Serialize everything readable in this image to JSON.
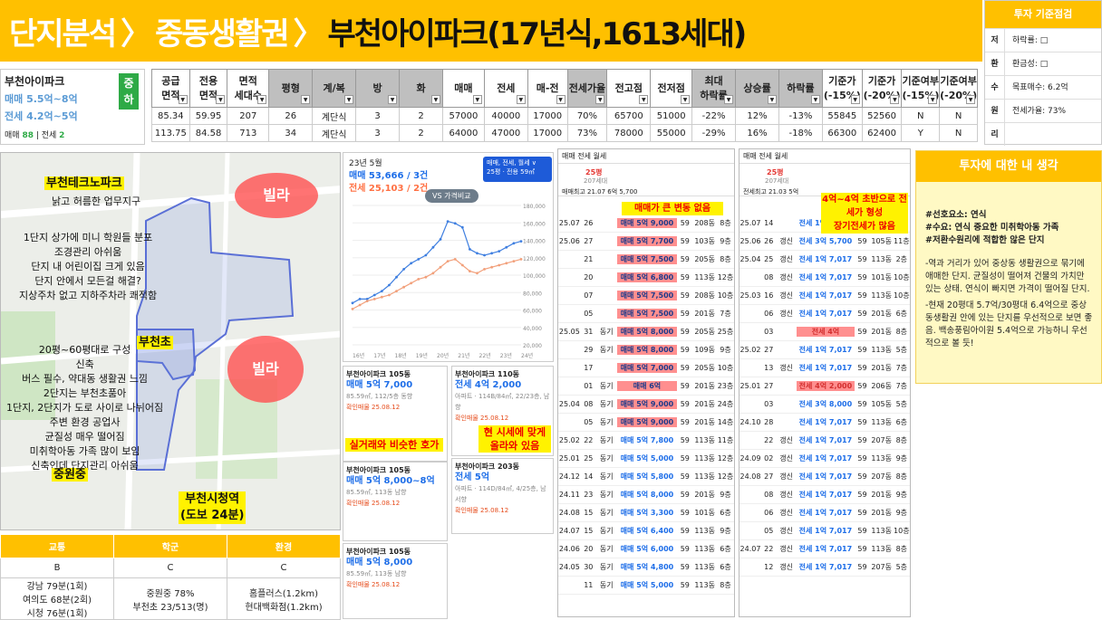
{
  "header": {
    "part1": "단지분석",
    "part2": "중동생활권",
    "part3": "부천아이파크(17년식,1613세대)"
  },
  "criteria": {
    "title": "투자 기준점검",
    "rows": [
      {
        "k": "저",
        "v": "하락률: □"
      },
      {
        "k": "환",
        "v": "환금성: □"
      },
      {
        "k": "수",
        "v": "목표매수: 6.2억"
      },
      {
        "k": "원",
        "v": "전세가율: 73%"
      },
      {
        "k": "리",
        "v": ""
      }
    ]
  },
  "info": {
    "name": "부천아이파크",
    "sale": "매매 5.5억~8억",
    "jeonse": "전세 4.2억~5억",
    "tag": "중\n하",
    "cnt_label_sale": "매매",
    "cnt_sale": "88",
    "cnt_label_jeonse": "전세",
    "cnt_jeonse": "2"
  },
  "table": {
    "headers": [
      "공급\n면적",
      "전용\n면적",
      "면적\n세대수",
      "평형",
      "계/복",
      "방",
      "화",
      "매매",
      "전세",
      "매-전",
      "전세가율",
      "전고점",
      "전저점",
      "최대\n하락률",
      "상승률",
      "하락률",
      "기준가\n(-15%)",
      "기준가\n(-20%)",
      "기준여부\n(-15%)",
      "기준여부\n(-20%)"
    ],
    "rows": [
      [
        "85.34",
        "59.95",
        "207",
        "26",
        "계단식",
        "3",
        "2",
        "57000",
        "40000",
        "17000",
        "70%",
        "65700",
        "51000",
        "-22%",
        "12%",
        "-13%",
        "55845",
        "52560",
        "N",
        "N"
      ],
      [
        "113.75",
        "84.58",
        "713",
        "34",
        "계단식",
        "3",
        "2",
        "64000",
        "47000",
        "17000",
        "73%",
        "78000",
        "55000",
        "-29%",
        "16%",
        "-18%",
        "66300",
        "62400",
        "Y",
        "N"
      ]
    ]
  },
  "map": {
    "labels": {
      "techno": "부천테크노파크",
      "techno_sub": "낡고 허름한 업무지구",
      "desc1": "1단지 상가에 미니 학원들 분포\n조경관리 아쉬움\n단지 내 어린이집 크게 있음\n단지 안에서 모든걸 해결?\n지상주차 없고 지하주차라 쾌적함",
      "school": "부천초",
      "desc2": "20평~60평대로 구성\n신축\n버스 필수, 약대동 생활권 느낌\n2단지는 부천초품아\n1단지, 2단지가 도로 사이로 나뉘어짐\n주변 환경 공업사\n균질성 매우 떨어짐\n미취학아동 가족 많이 보임\n신축인데 단지관리 아쉬움",
      "joongwon": "중원중",
      "station": "부천시청역\n(도보 24분)",
      "villa": "빌라"
    }
  },
  "school_table": {
    "headers": [
      "교통",
      "학군",
      "환경"
    ],
    "grades": [
      "B",
      "C",
      "C"
    ],
    "details": [
      "강남 79분(1회)\n여의도 68분(2회)\n시청 76분(1회)",
      "중원중 78%\n부천초 23/513(명)",
      "홈플러스(1.2km)\n현대백화점(1.2km)"
    ]
  },
  "chart_data": {
    "type": "line",
    "title": "23년 5월",
    "sale_text": "매매 53,666 / 3건",
    "jeonse_text": "전세 25,103 / 2건",
    "filter": "매매, 전세, 월세 ∨",
    "size": "25평 · 전용 59㎡",
    "compare": "VS 가격비교",
    "x_labels": [
      "16년",
      "17년",
      "18년",
      "19년",
      "20년",
      "21년",
      "22년",
      "23년",
      "24년"
    ],
    "y_labels": [
      "180,000",
      "160,000",
      "140,000",
      "120,000",
      "100,000",
      "80,000",
      "60,000",
      "40,000",
      "20,000"
    ],
    "series": [
      {
        "values": [
          2.1,
          2.3,
          2.3,
          2.5,
          2.7,
          3.0,
          3.4,
          3.8,
          4.1,
          4.3,
          4.5,
          4.9,
          5.3,
          6.2,
          6.1,
          5.9,
          4.8,
          4.6,
          4.5,
          4.6,
          4.7,
          4.9,
          5.1,
          5.2
        ]
      },
      {
        "values": [
          1.8,
          2.0,
          2.2,
          2.3,
          2.4,
          2.5,
          2.7,
          2.9,
          3.1,
          3.3,
          3.4,
          3.6,
          3.9,
          4.2,
          4.3,
          4.0,
          3.7,
          3.6,
          3.8,
          3.9,
          4.0,
          4.1,
          4.2,
          4.3
        ]
      }
    ]
  },
  "cards": [
    {
      "title": "부천아이파크 105동",
      "price": "매매 5억 7,000",
      "spec": "85.59㎡, 112/5층 동향",
      "note": "확인매물 25.08.12",
      "hl": "실거래와 비슷한 호가"
    },
    {
      "title": "부천아이파크 105동",
      "price": "매매 5억 8,000~8억",
      "spec": "85.59㎡, 113동 남향",
      "note": "확인매물 25.08.12",
      "hl": ""
    },
    {
      "title": "부천아이파크 105동",
      "price": "매매 5억 8,000",
      "spec": "85.59㎡, 113동 남향",
      "note": "확인매물 25.08.12",
      "hl": ""
    },
    {
      "title": "부천아이파크 110동",
      "price": "전세 4억 2,000",
      "spec": "아파트 · 114B/84㎡, 22/23층, 남향",
      "note": "확인매물 25.08.12",
      "hl": "현 시세에 맞게 올라와 있음"
    },
    {
      "title": "부천아이파크 203동",
      "price": "전세 5억",
      "spec": "아파트 · 114D/84㎡, 4/25층, 남서향",
      "note": "확인매물 25.08.12",
      "hl": ""
    }
  ],
  "trade1": {
    "tabs": "매매 전세 월세",
    "area": "25평",
    "year": "207세대",
    "hl": "매매가 큰 변동 없음",
    "hi": "매매최고 21.07 6억 5,700",
    "jeonse_hi": "전세최고 21.03 5억",
    "rows": [
      [
        "25.07",
        "26",
        "",
        "매매 5억 9,000",
        "59",
        "208동",
        "8층",
        1
      ],
      [
        "25.06",
        "27",
        "",
        "매매 5억 7,700",
        "59",
        "103동",
        "9층",
        1
      ],
      [
        "",
        "21",
        "",
        "매매 5억 7,500",
        "59",
        "205동",
        "8층",
        1
      ],
      [
        "",
        "20",
        "",
        "매매 5억 6,800",
        "59",
        "113동",
        "12층",
        1
      ],
      [
        "",
        "07",
        "",
        "매매 5억 7,500",
        "59",
        "208동",
        "10층",
        1
      ],
      [
        "",
        "05",
        "",
        "매매 5억 7,500",
        "59",
        "201동",
        "7층",
        1
      ],
      [
        "25.05",
        "31",
        "동기",
        "매매 5억 8,000",
        "59",
        "205동",
        "25층",
        1
      ],
      [
        "",
        "29",
        "동기",
        "매매 5억 8,000",
        "59",
        "109동",
        "9층",
        1
      ],
      [
        "",
        "17",
        "",
        "매매 5억 7,000",
        "59",
        "205동",
        "10층",
        1
      ],
      [
        "",
        "01",
        "동기",
        "매매 6억",
        "59",
        "201동",
        "23층",
        1
      ],
      [
        "25.04",
        "08",
        "동기",
        "매매 5억 9,000",
        "59",
        "201동",
        "24층",
        1
      ],
      [
        "",
        "05",
        "동기",
        "매매 5억 9,000",
        "59",
        "201동",
        "14층",
        1
      ],
      [
        "25.02",
        "22",
        "동기",
        "매매 5억 7,800",
        "59",
        "113동",
        "11층",
        0
      ],
      [
        "25.01",
        "25",
        "동기",
        "매매 5억 5,000",
        "59",
        "113동",
        "12층",
        0
      ],
      [
        "24.12",
        "14",
        "동기",
        "매매 5억 5,800",
        "59",
        "113동",
        "12층",
        0
      ],
      [
        "24.11",
        "23",
        "동기",
        "매매 5억 8,000",
        "59",
        "201동",
        "9층",
        0
      ],
      [
        "24.08",
        "15",
        "동기",
        "매매 5억 3,300",
        "59",
        "101동",
        "6층",
        0
      ],
      [
        "24.07",
        "15",
        "동기",
        "매매 5억 6,400",
        "59",
        "113동",
        "9층",
        0
      ],
      [
        "24.06",
        "20",
        "동기",
        "매매 5억 6,000",
        "59",
        "113동",
        "6층",
        0
      ],
      [
        "24.05",
        "30",
        "동기",
        "매매 5억 4,800",
        "59",
        "113동",
        "6층",
        0
      ],
      [
        "",
        "11",
        "동기",
        "매매 5억 5,000",
        "59",
        "113동",
        "8층",
        0
      ]
    ]
  },
  "trade2": {
    "tabs": "매매 전세 월세",
    "area": "25평",
    "year": "207세대",
    "hl": "4억~4억 초반으로 전세가 형성\n장기전세가 많음",
    "hi": "매매최고 21.07 6억 5,700",
    "jeonse_hi": "전세최고 21.03 5억",
    "rows": [
      [
        "25.07",
        "14",
        "",
        "전세 1억 7,017",
        "59",
        "113동",
        "5층",
        0
      ],
      [
        "25.06",
        "26",
        "갱신",
        "전세 3억 5,700",
        "59",
        "105동",
        "11층",
        0
      ],
      [
        "25.04",
        "25",
        "갱신",
        "전세 1억 7,017",
        "59",
        "113동",
        "2층",
        0
      ],
      [
        "",
        "08",
        "갱신",
        "전세 1억 7,017",
        "59",
        "101동",
        "10층",
        0
      ],
      [
        "25.03",
        "16",
        "갱신",
        "전세 1억 7,017",
        "59",
        "113동",
        "10층",
        0
      ],
      [
        "",
        "06",
        "갱신",
        "전세 1억 7,017",
        "59",
        "201동",
        "6층",
        0
      ],
      [
        "",
        "03",
        "",
        "전세 4억",
        "59",
        "201동",
        "8층",
        1
      ],
      [
        "25.02",
        "27",
        "",
        "전세 1억 7,017",
        "59",
        "113동",
        "5층",
        0
      ],
      [
        "",
        "13",
        "갱신",
        "전세 1억 7,017",
        "59",
        "201동",
        "7층",
        0
      ],
      [
        "25.01",
        "27",
        "",
        "전세 4억 2,000",
        "59",
        "206동",
        "7층",
        1
      ],
      [
        "",
        "03",
        "",
        "전세 3억 8,000",
        "59",
        "105동",
        "5층",
        0
      ],
      [
        "24.10",
        "28",
        "",
        "전세 1억 7,017",
        "59",
        "113동",
        "6층",
        0
      ],
      [
        "",
        "22",
        "갱신",
        "전세 1억 7,017",
        "59",
        "207동",
        "8층",
        0
      ],
      [
        "24.09",
        "02",
        "갱신",
        "전세 1억 7,017",
        "59",
        "113동",
        "9층",
        0
      ],
      [
        "24.08",
        "27",
        "갱신",
        "전세 1억 7,017",
        "59",
        "207동",
        "8층",
        0
      ],
      [
        "",
        "08",
        "갱신",
        "전세 1억 7,017",
        "59",
        "201동",
        "9층",
        0
      ],
      [
        "",
        "06",
        "갱신",
        "전세 1억 7,017",
        "59",
        "201동",
        "9층",
        0
      ],
      [
        "",
        "05",
        "갱신",
        "전세 1억 7,017",
        "59",
        "113동",
        "10층",
        0
      ],
      [
        "24.07",
        "22",
        "갱신",
        "전세 1억 7,017",
        "59",
        "113동",
        "8층",
        0
      ],
      [
        "",
        "12",
        "갱신",
        "전세 1억 7,017",
        "59",
        "207동",
        "5층",
        0
      ]
    ]
  },
  "opinion": {
    "title": "투자에 대한 내 생각",
    "tags": [
      "#선호요소: 연식",
      "#수요: 연식 중요한 미취학아동 가족",
      "#저환수원리에 적합한 않은 단지"
    ],
    "p1": "-역과 거리가 있어 중상동 생활권으로 묶기에 애매한 단지. 균질성이 떨어져 건물의 가치만 있는 상태. 연식이 빠지면 가격이 떨어질 단지.",
    "p2": "-현재 20평대 5.7억/30평대 6.4억으로 중상동생활권 안에 있는 단지를 우선적으로 보면 좋음. 백송풍림아이원 5.4억으로 가능하니 우선적으로 볼 듯!"
  }
}
